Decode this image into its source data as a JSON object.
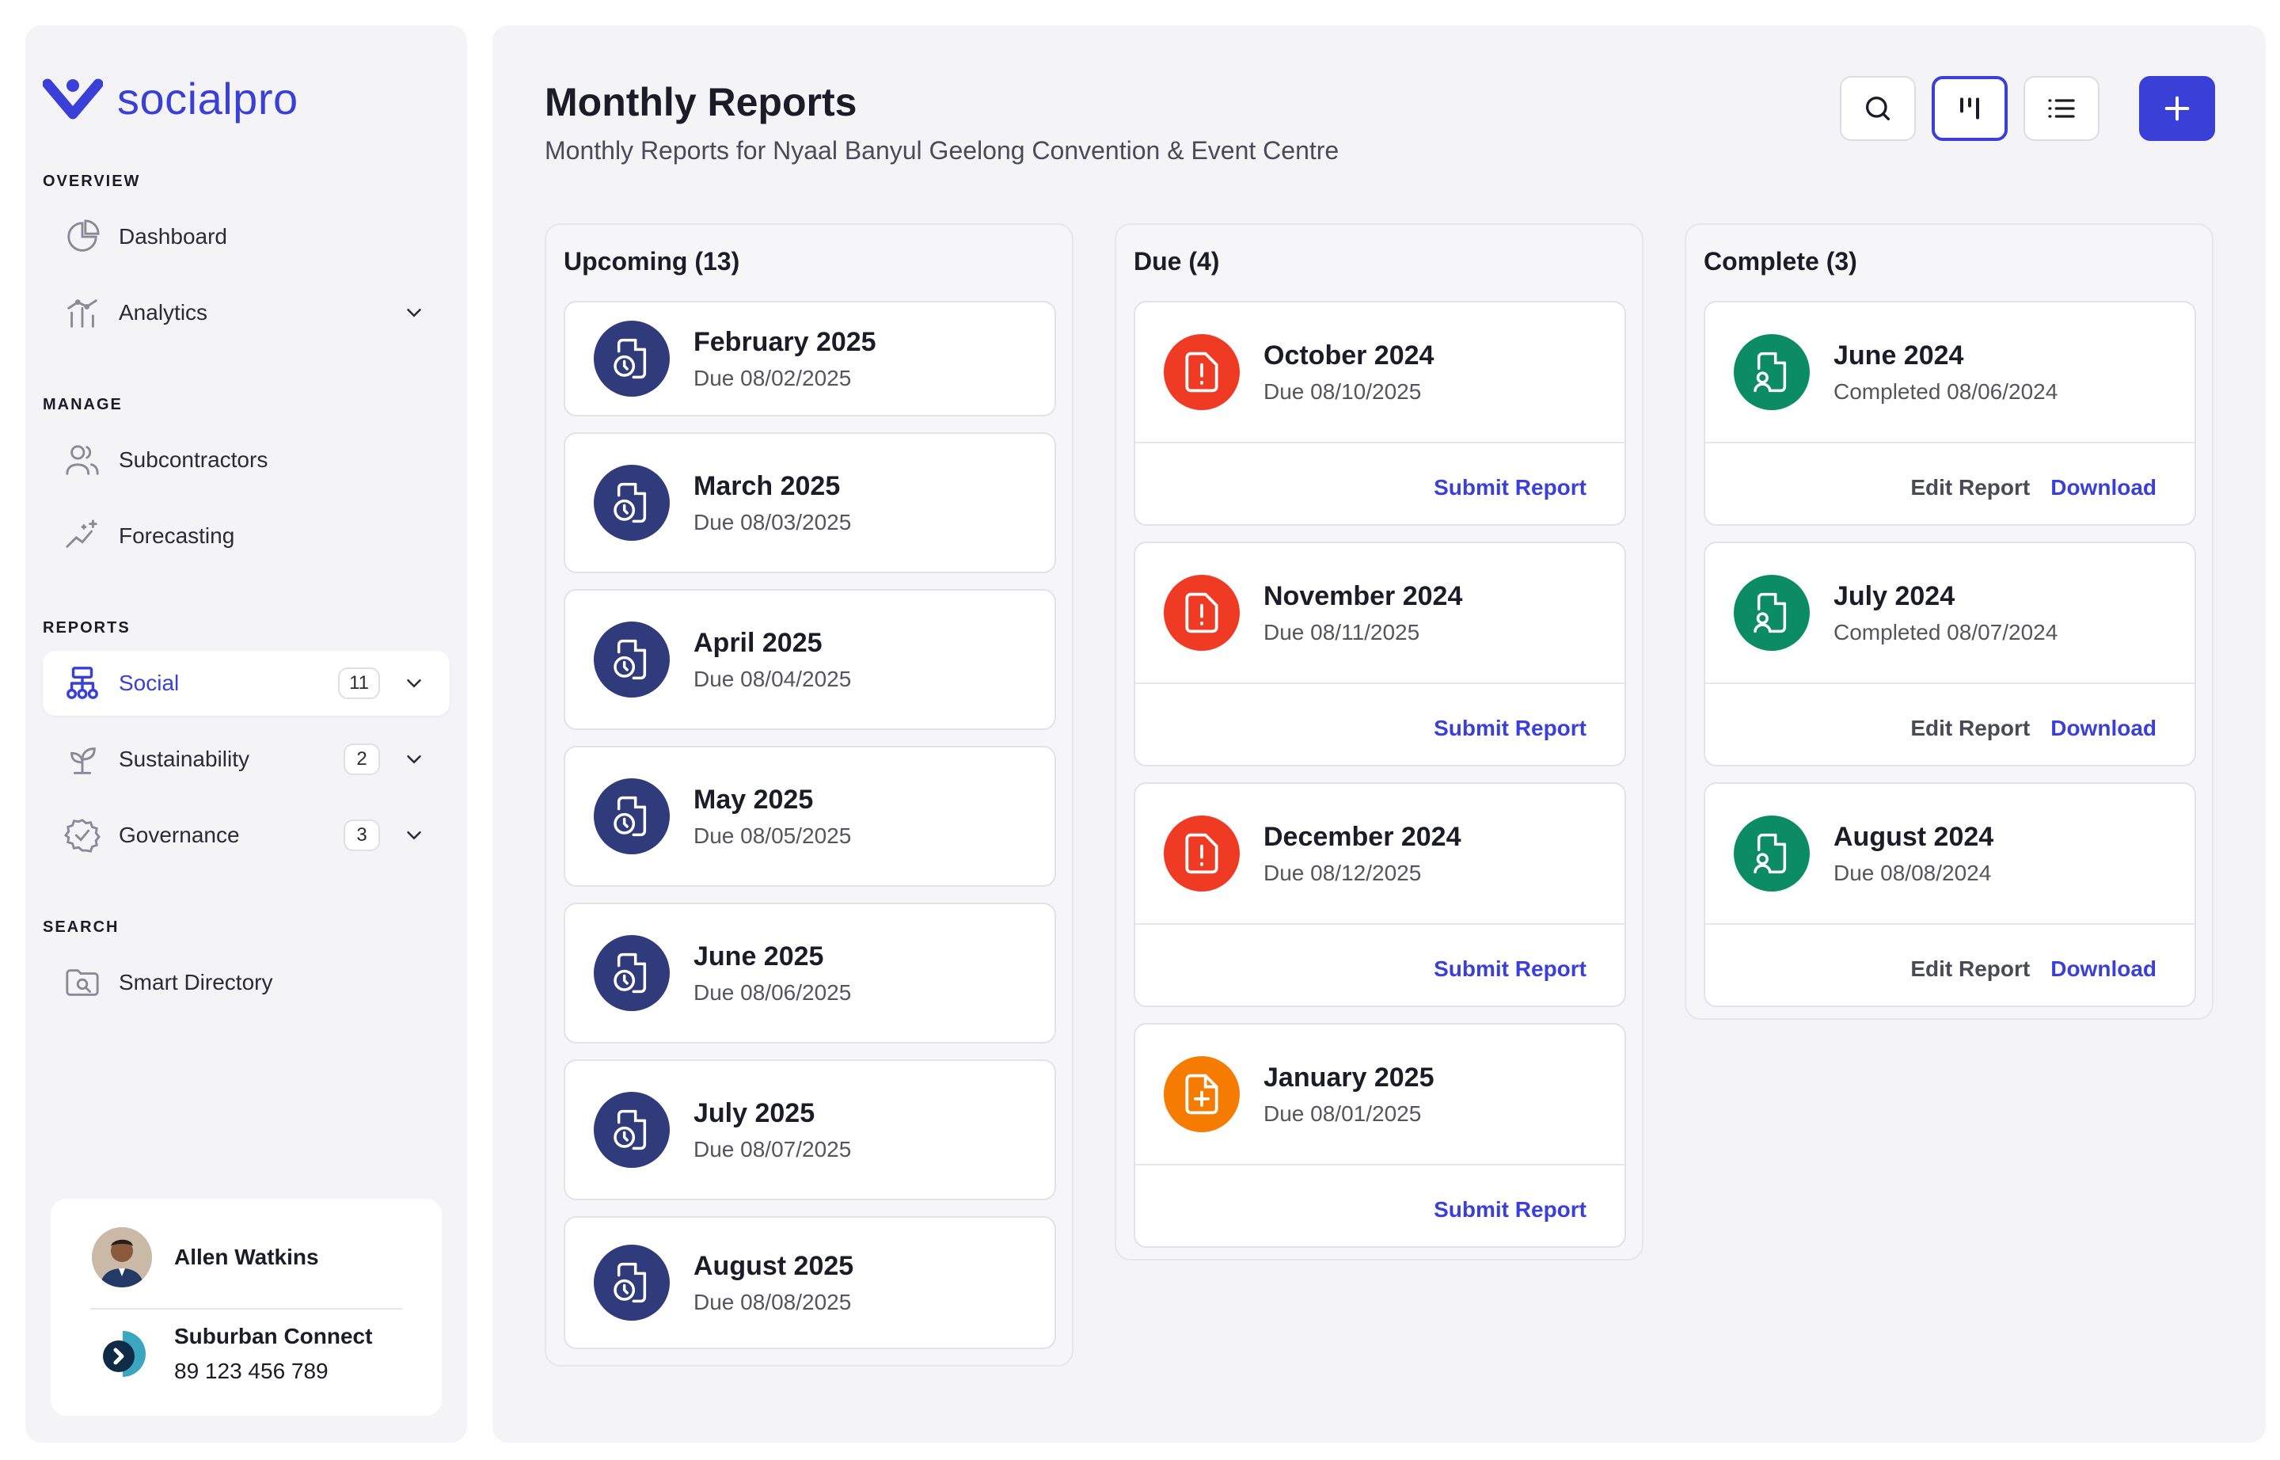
{
  "brand": {
    "name": "socialpro",
    "color": "#3a3fd8"
  },
  "sidebar": {
    "sections": {
      "overview": "OVERVIEW",
      "manage": "MANAGE",
      "reports": "REPORTS",
      "search": "SEARCH"
    },
    "items": {
      "dashboard": {
        "label": "Dashboard",
        "icon": "pie-chart-icon"
      },
      "analytics": {
        "label": "Analytics",
        "icon": "analytics-icon"
      },
      "subcontractors": {
        "label": "Subcontractors",
        "icon": "users-icon"
      },
      "forecasting": {
        "label": "Forecasting",
        "icon": "sparkle-chart-icon"
      },
      "social": {
        "label": "Social",
        "badge": "11",
        "icon": "hierarchy-icon",
        "active": true
      },
      "sustainability": {
        "label": "Sustainability",
        "badge": "2",
        "icon": "sprout-icon"
      },
      "governance": {
        "label": "Governance",
        "badge": "3",
        "icon": "badge-check-icon"
      },
      "smart_directory": {
        "label": "Smart Directory",
        "icon": "folder-search-icon"
      }
    },
    "user": {
      "name": "Allen Watkins",
      "org_name": "Suburban Connect",
      "org_phone": "89 123 456 789"
    }
  },
  "main": {
    "title": "Monthly Reports",
    "subtitle": "Monthly Reports for Nyaal Banyul Geelong Convention & Event Centre",
    "columns": {
      "upcoming": {
        "title": "Upcoming (13)",
        "cards": [
          {
            "title": "February 2025",
            "sub": "Due 08/02/2025"
          },
          {
            "title": "March 2025",
            "sub": "Due 08/03/2025"
          },
          {
            "title": "April 2025",
            "sub": "Due 08/04/2025"
          },
          {
            "title": "May 2025",
            "sub": "Due 08/05/2025"
          },
          {
            "title": "June 2025",
            "sub": "Due 08/06/2025"
          },
          {
            "title": "July 2025",
            "sub": "Due 08/07/2025"
          },
          {
            "title": "August 2025",
            "sub": "Due 08/08/2025"
          }
        ]
      },
      "due": {
        "title": "Due (4)",
        "cards": [
          {
            "title": "October 2024",
            "sub": "Due 08/10/2025",
            "action": "Submit Report"
          },
          {
            "title": "November 2024",
            "sub": "Due 08/11/2025",
            "action": "Submit Report"
          },
          {
            "title": "December 2024",
            "sub": "Due 08/12/2025",
            "action": "Submit Report"
          },
          {
            "title": "January 2025",
            "sub": "Due 08/01/2025",
            "action": "Submit Report"
          }
        ]
      },
      "complete": {
        "title": "Complete (3)",
        "cards": [
          {
            "title": "June 2024",
            "sub": "Completed 08/06/2024",
            "edit": "Edit Report",
            "download": "Download"
          },
          {
            "title": "July 2024",
            "sub": "Completed 08/07/2024",
            "edit": "Edit Report",
            "download": "Download"
          },
          {
            "title": "August 2024",
            "sub": "Due 08/08/2024",
            "edit": "Edit Report",
            "download": "Download"
          }
        ]
      }
    }
  },
  "colors": {
    "upcoming_icon": "#2f3b7a",
    "overdue_icon": "#ef3b24",
    "pending_icon": "#f57c00",
    "complete_icon": "#0c8c63"
  }
}
